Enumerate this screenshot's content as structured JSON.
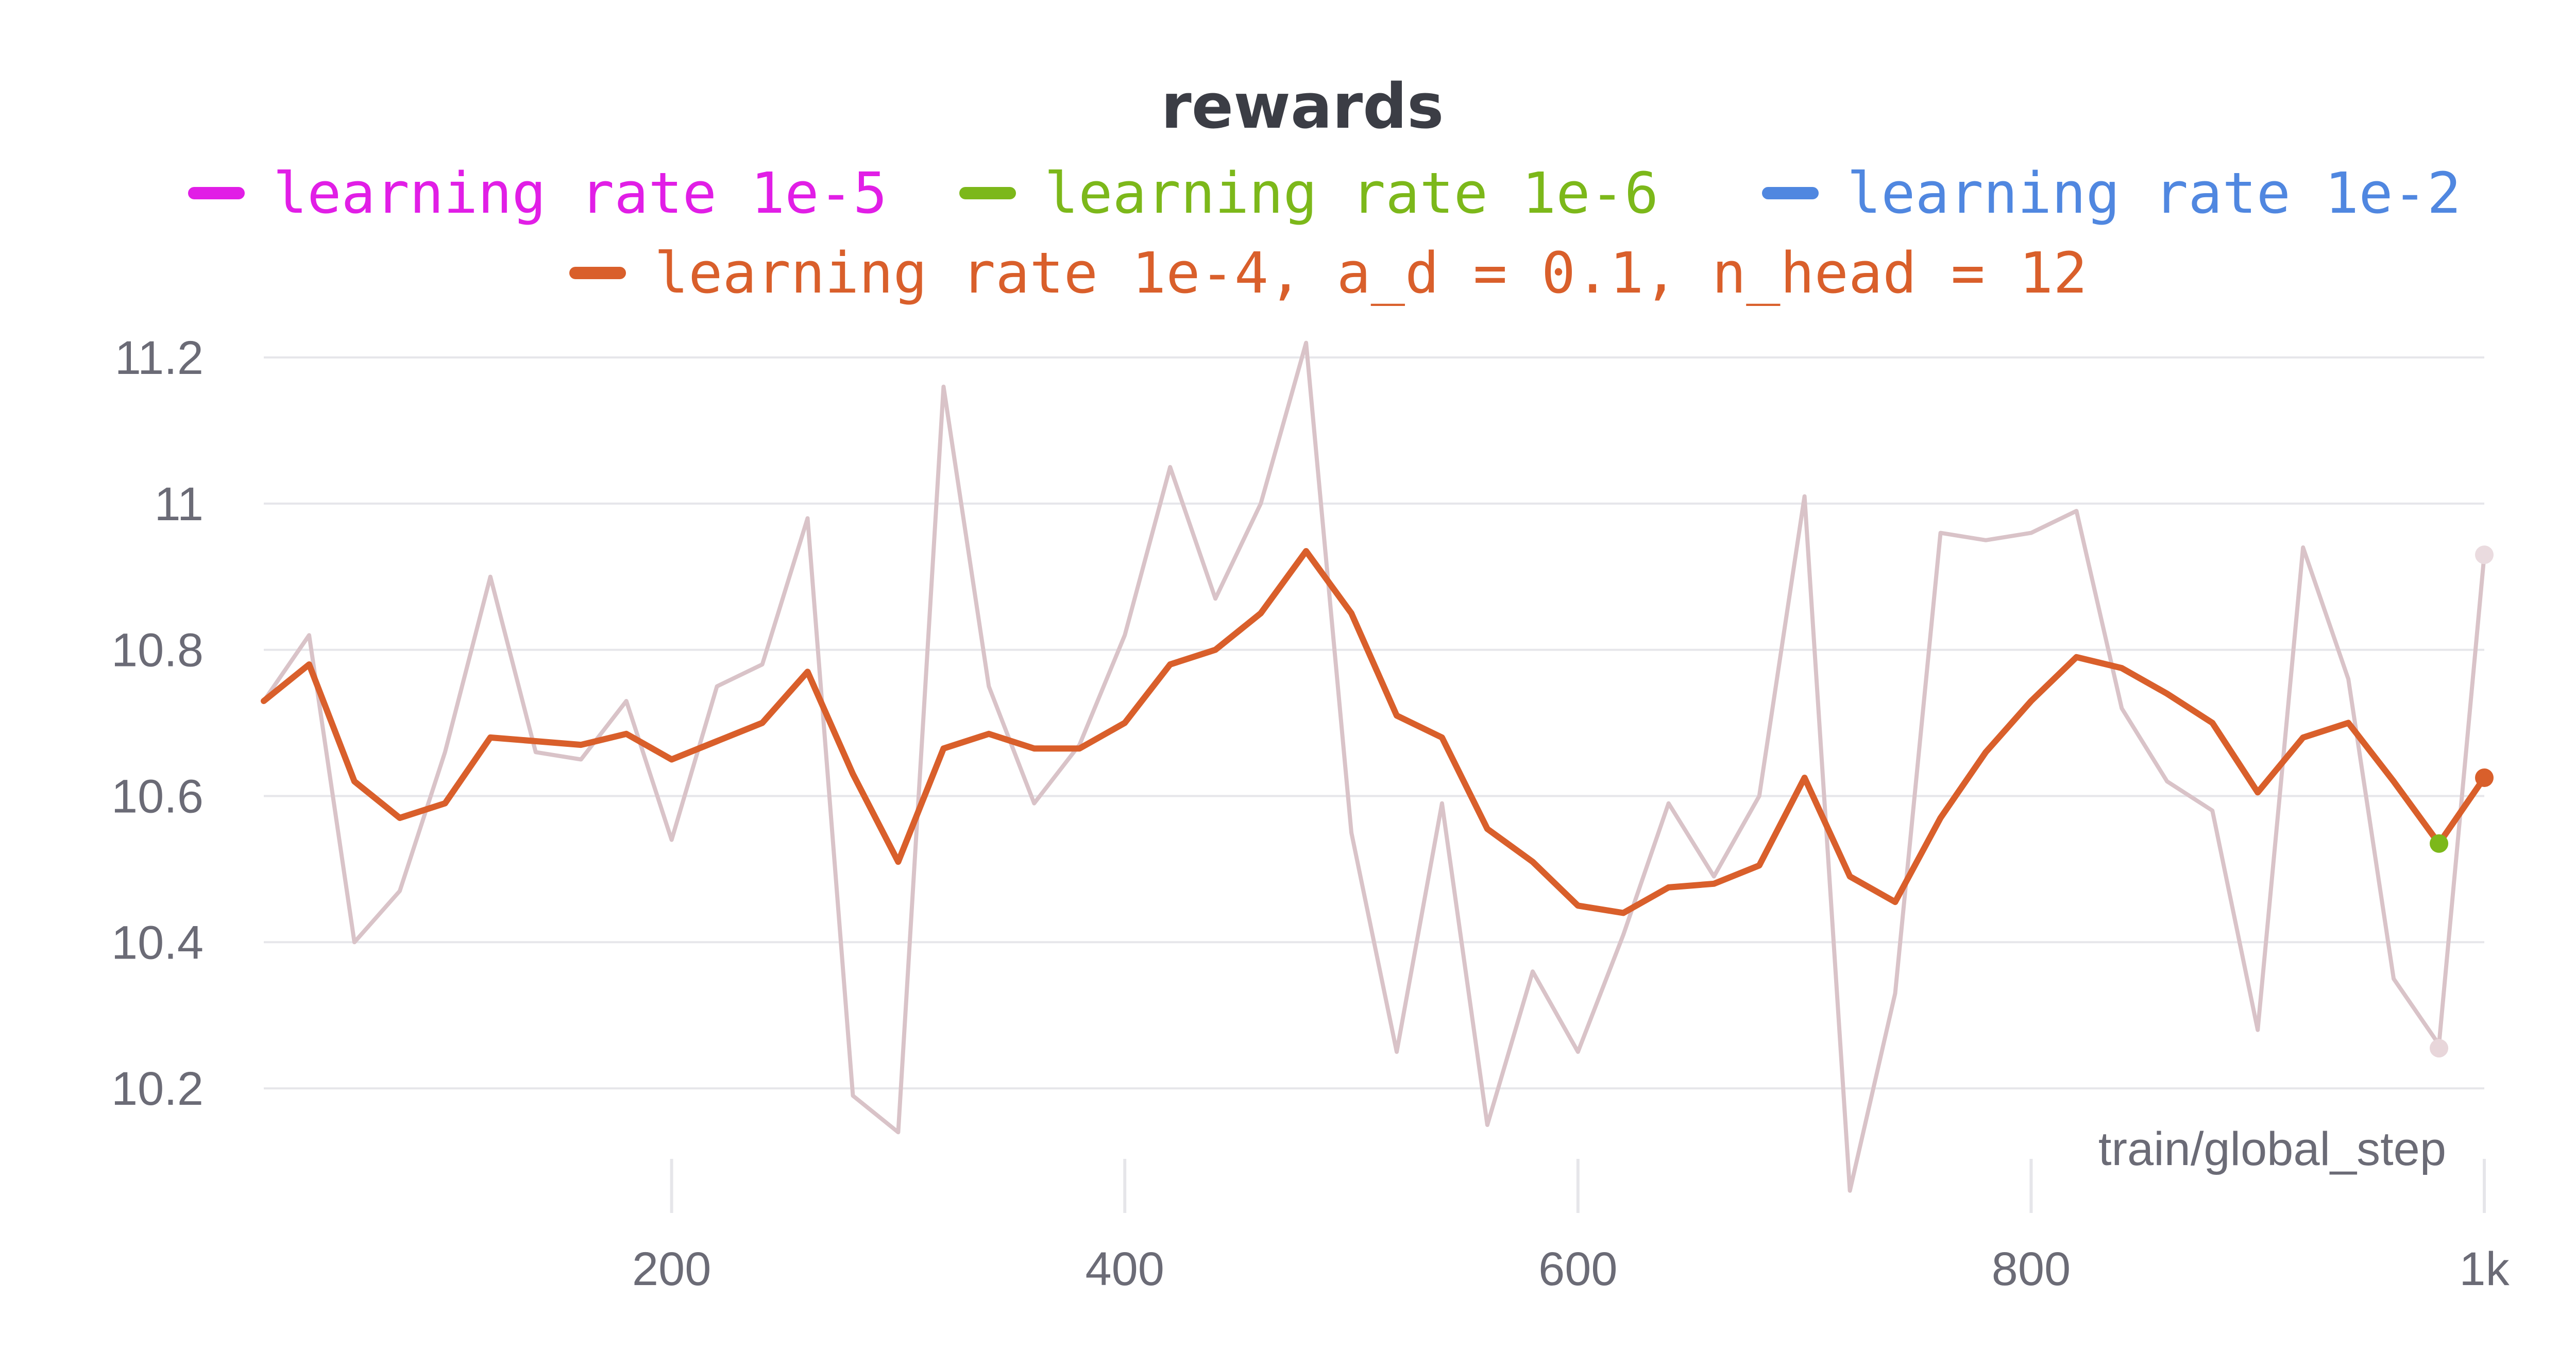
{
  "chart_data": {
    "type": "line",
    "title": "rewards",
    "xlabel": "train/global_step",
    "ylabel": "",
    "xlim": [
      20,
      1000
    ],
    "ylim": [
      10.05,
      11.25
    ],
    "x_ticks": [
      200,
      400,
      600,
      800,
      1000
    ],
    "x_tick_labels": [
      "200",
      "400",
      "600",
      "800",
      "1k"
    ],
    "y_ticks": [
      10.2,
      10.4,
      10.6,
      10.8,
      11,
      11.2
    ],
    "y_tick_labels": [
      "10.2",
      "10.4",
      "10.6",
      "10.8",
      "11",
      "11.2"
    ],
    "grid": true,
    "legend_placement": "top",
    "legend": [
      {
        "label": "learning rate 1e-5",
        "color": "#e11ee6"
      },
      {
        "label": "learning rate 1e-6",
        "color": "#7cb81a"
      },
      {
        "label": "learning rate 1e-2",
        "color": "#5087e0"
      },
      {
        "label": "learning rate 1e-4, a_d = 0.1, n_head = 12",
        "color": "#d95f2b"
      }
    ],
    "series": [
      {
        "role": "raw",
        "color": "#d9c3c8",
        "x": [
          20,
          40,
          60,
          80,
          100,
          120,
          140,
          160,
          180,
          200,
          220,
          240,
          260,
          280,
          300,
          320,
          340,
          360,
          380,
          400,
          420,
          440,
          460,
          480,
          500,
          520,
          540,
          560,
          580,
          600,
          620,
          640,
          660,
          680,
          700,
          720,
          740,
          760,
          780,
          800,
          820,
          840,
          860,
          880,
          900,
          920,
          940,
          960,
          980,
          1000
        ],
        "values": [
          10.73,
          10.82,
          10.4,
          10.47,
          10.66,
          10.9,
          10.66,
          10.65,
          10.73,
          10.54,
          10.75,
          10.78,
          10.98,
          10.19,
          10.14,
          11.16,
          10.75,
          10.59,
          10.67,
          10.82,
          11.05,
          10.87,
          11.0,
          11.22,
          10.55,
          10.25,
          10.59,
          10.15,
          10.36,
          10.25,
          10.41,
          10.59,
          10.49,
          10.6,
          11.01,
          10.06,
          10.33,
          10.96,
          10.95,
          10.96,
          10.99,
          10.72,
          10.62,
          10.58,
          10.28,
          10.94,
          10.76,
          10.35,
          10.26,
          10.93
        ]
      },
      {
        "role": "smoothed",
        "color": "#d95f2b",
        "x": [
          20,
          40,
          60,
          80,
          100,
          120,
          140,
          160,
          180,
          200,
          220,
          240,
          260,
          280,
          300,
          320,
          340,
          360,
          380,
          400,
          420,
          440,
          460,
          480,
          500,
          520,
          540,
          560,
          580,
          600,
          620,
          640,
          660,
          680,
          700,
          720,
          740,
          760,
          780,
          800,
          820,
          840,
          860,
          880,
          900,
          920,
          940,
          960,
          980,
          1000
        ],
        "values": [
          10.73,
          10.78,
          10.62,
          10.57,
          10.59,
          10.68,
          10.675,
          10.67,
          10.685,
          10.65,
          10.675,
          10.7,
          10.77,
          10.63,
          10.51,
          10.665,
          10.685,
          10.665,
          10.665,
          10.7,
          10.78,
          10.8,
          10.85,
          10.935,
          10.85,
          10.71,
          10.68,
          10.555,
          10.51,
          10.45,
          10.44,
          10.475,
          10.48,
          10.505,
          10.625,
          10.49,
          10.455,
          10.57,
          10.66,
          10.73,
          10.79,
          10.775,
          10.74,
          10.7,
          10.605,
          10.68,
          10.7,
          10.62,
          10.535,
          10.625
        ]
      }
    ],
    "end_markers": [
      {
        "x": 980,
        "y": 10.535,
        "color": "#7cb81a"
      },
      {
        "x": 980,
        "y": 10.255,
        "color": "#e8d6da"
      },
      {
        "x": 1000,
        "y": 10.625,
        "color": "#d95f2b"
      },
      {
        "x": 1000,
        "y": 10.93,
        "color": "#eadbdf"
      }
    ]
  }
}
